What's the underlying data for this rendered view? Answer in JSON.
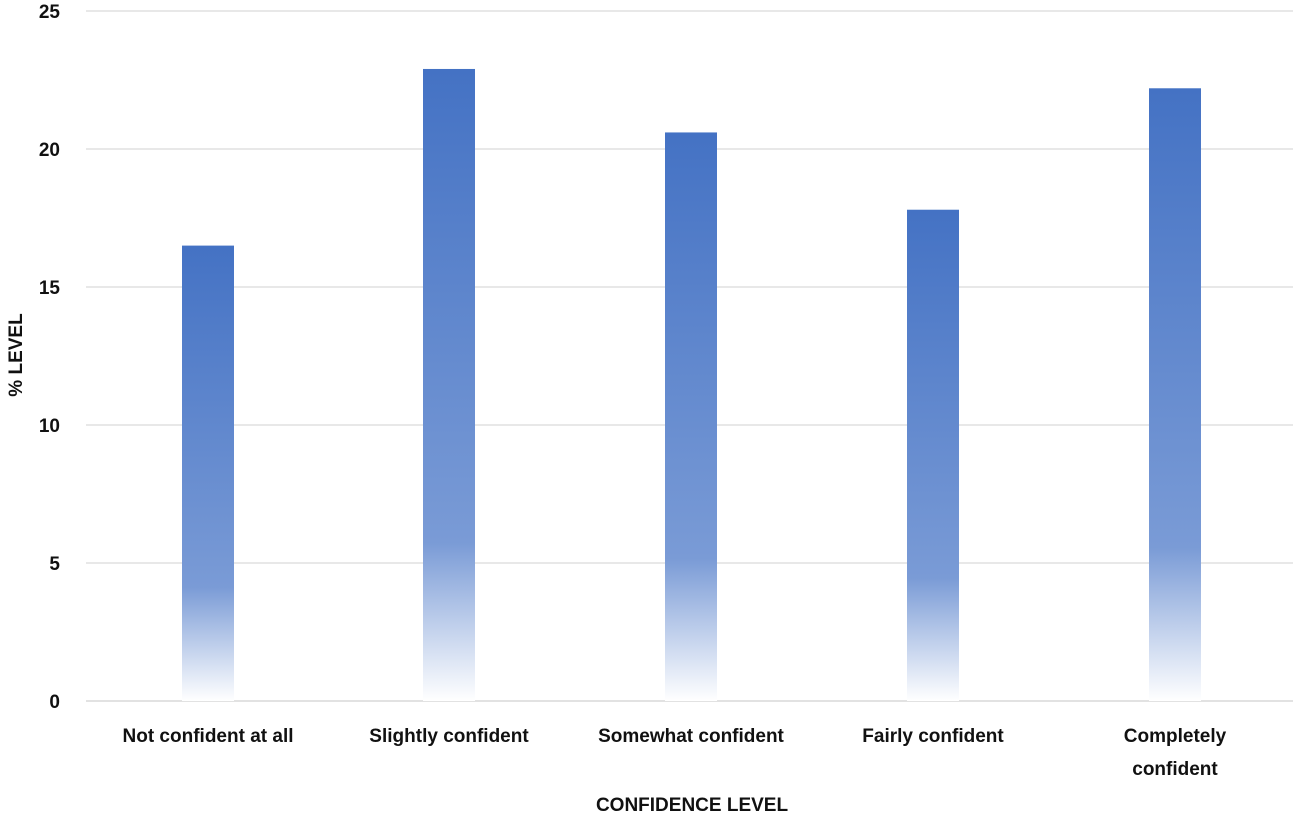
{
  "chart_data": {
    "type": "bar",
    "categories": [
      [
        "Not confident at all"
      ],
      [
        "Slightly confident"
      ],
      [
        "Somewhat confident"
      ],
      [
        "Fairly confident"
      ],
      [
        "Completely",
        "confident"
      ]
    ],
    "values": [
      16.5,
      22.9,
      20.6,
      17.8,
      22.2
    ],
    "title": "",
    "xlabel": "CONFIDENCE LEVEL",
    "ylabel": "% LEVEL",
    "ylim": [
      0,
      25
    ],
    "yticks": [
      0,
      5,
      10,
      15,
      20,
      25
    ],
    "grid": true,
    "legend": "none",
    "colors": {
      "bar_top": "#4472c4",
      "bar_mid": "#7a9bd6",
      "bar_bottom": "#ffffff",
      "grid": "#d9d9d9",
      "text": "#111111"
    }
  }
}
